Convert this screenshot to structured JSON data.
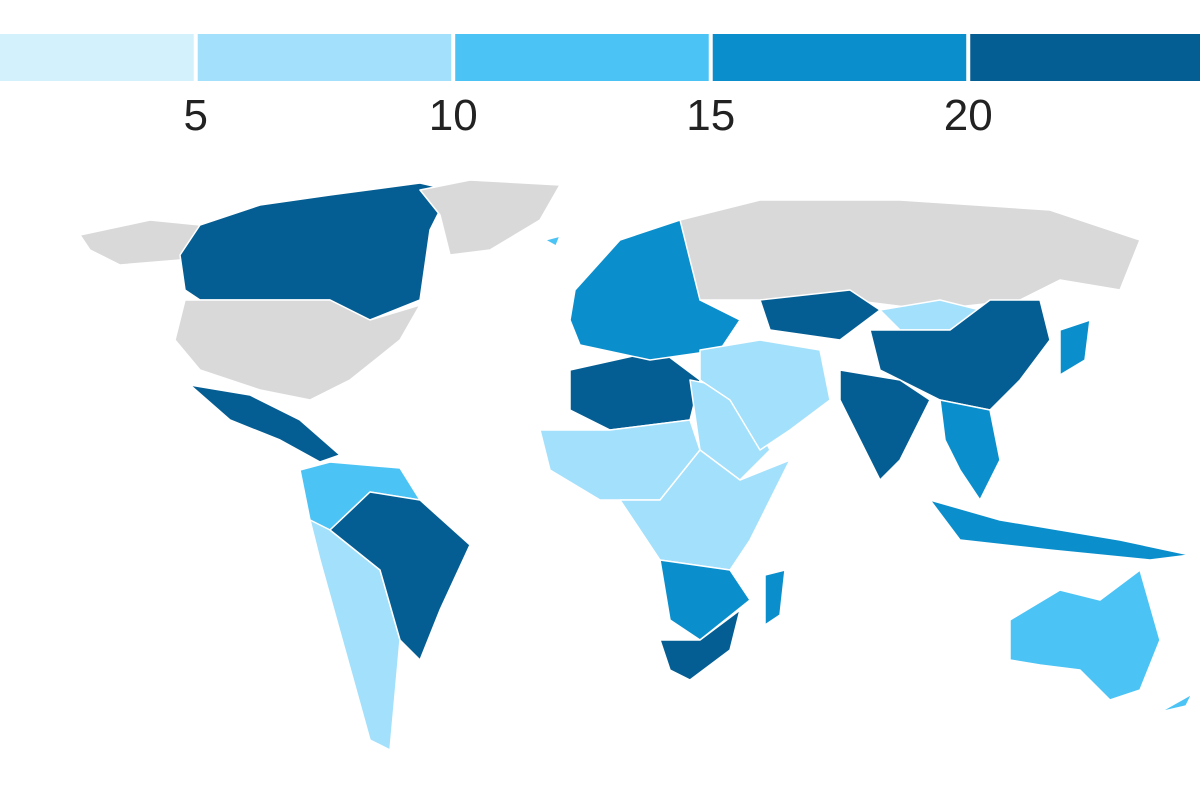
{
  "chart_data": {
    "type": "choropleth",
    "xlim": [
      1.2,
      24.5
    ],
    "xticks": [
      5,
      10,
      15,
      20
    ],
    "colors": [
      "#d2f1fd",
      "#a3e0fb",
      "#4cc3f5",
      "#0b8fcc",
      "#055e93"
    ],
    "no_data_color": "#d9d9d9"
  }
}
